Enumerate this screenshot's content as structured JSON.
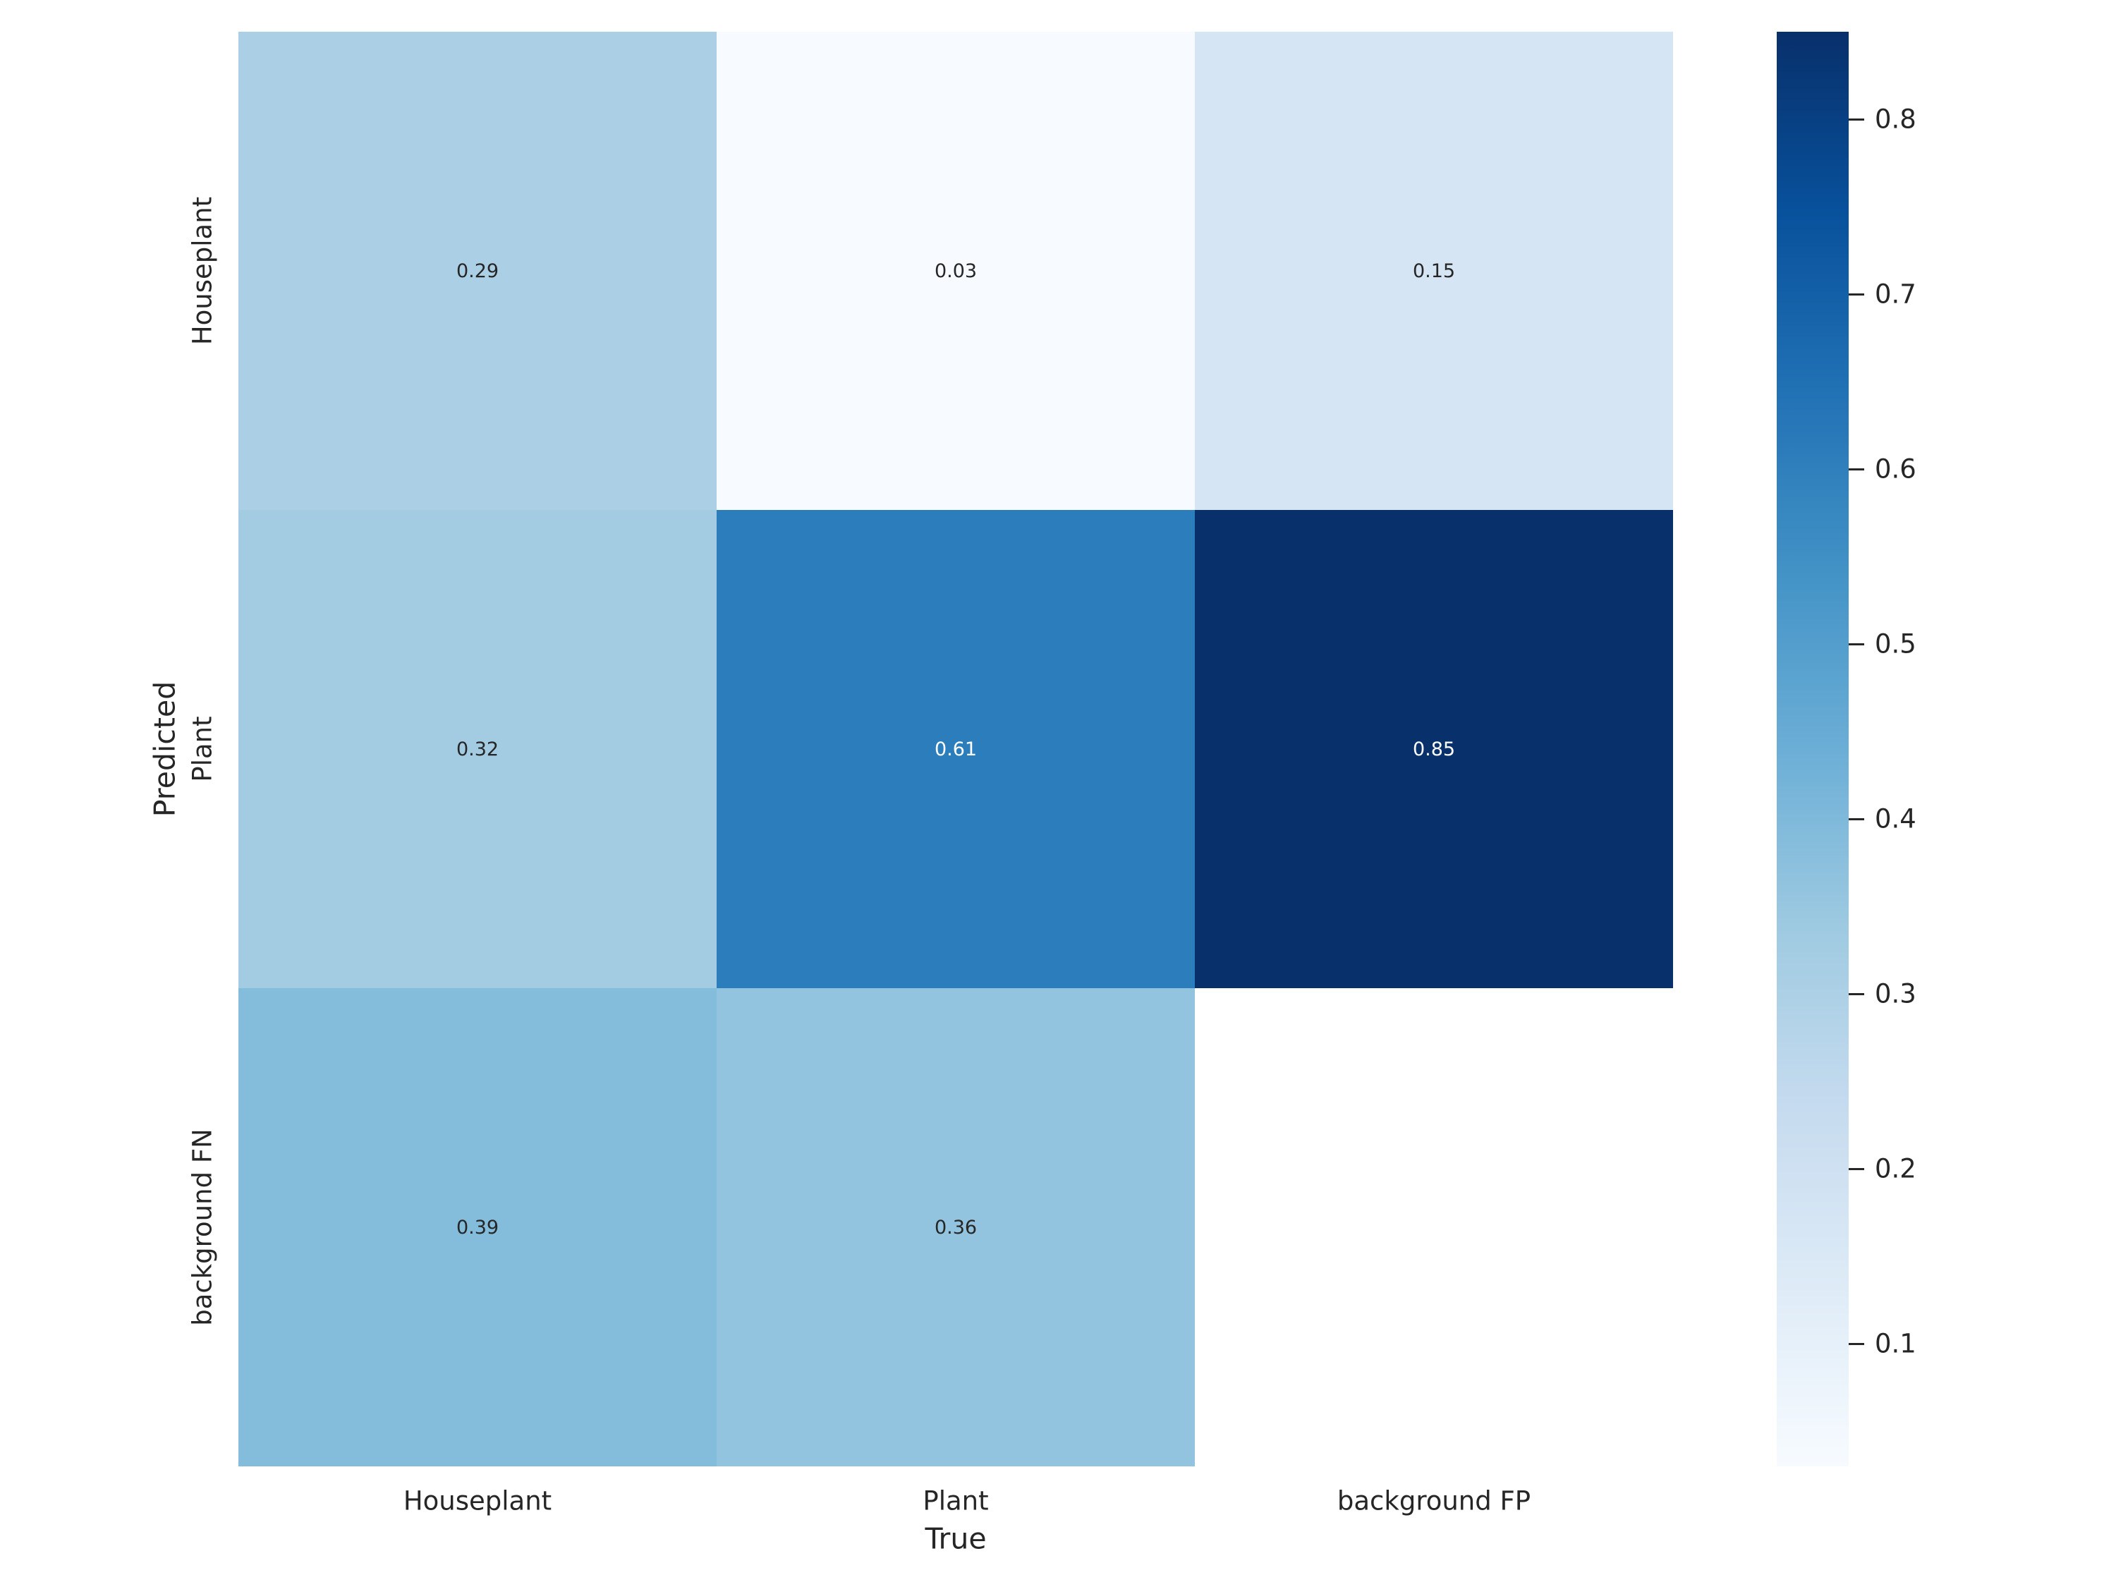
{
  "chart_data": {
    "type": "heatmap",
    "title": "",
    "xlabel": "True",
    "ylabel": "Predicted",
    "x_categories": [
      "Houseplant",
      "Plant",
      "background FP"
    ],
    "y_categories": [
      "Houseplant",
      "Plant",
      "background FN"
    ],
    "values": [
      [
        0.29,
        0.03,
        0.15
      ],
      [
        0.32,
        0.61,
        0.85
      ],
      [
        0.39,
        0.36,
        null
      ]
    ],
    "cell_labels": [
      [
        "0.29",
        "0.03",
        "0.15"
      ],
      [
        "0.32",
        "0.61",
        "0.85"
      ],
      [
        "0.39",
        "0.36",
        ""
      ]
    ],
    "cell_colors": [
      [
        "#abd0e6",
        "#f7fbff",
        "#d5e5f4"
      ],
      [
        "#a3cce3",
        "#2c7dbb",
        "#08306b"
      ],
      [
        "#84bcdb",
        "#93c4df",
        "#ffffff"
      ]
    ],
    "cell_text_colors": [
      [
        "#262626",
        "#262626",
        "#262626"
      ],
      [
        "#262626",
        "#ffffff",
        "#ffffff"
      ],
      [
        "#262626",
        "#262626",
        "#262626"
      ]
    ],
    "colormap": "Blues",
    "vmin": 0.03,
    "vmax": 0.85,
    "colorbar_ticks": [
      0.8,
      0.7,
      0.6,
      0.5,
      0.4,
      0.3,
      0.2,
      0.1
    ],
    "colorbar_stops": [
      {
        "pos": 0.0,
        "color": "#08306b"
      },
      {
        "pos": 0.125,
        "color": "#08519c"
      },
      {
        "pos": 0.25,
        "color": "#2171b5"
      },
      {
        "pos": 0.375,
        "color": "#4292c6"
      },
      {
        "pos": 0.5,
        "color": "#6baed6"
      },
      {
        "pos": 0.625,
        "color": "#9ecae1"
      },
      {
        "pos": 0.75,
        "color": "#c6dbef"
      },
      {
        "pos": 0.875,
        "color": "#deebf7"
      },
      {
        "pos": 1.0,
        "color": "#f7fbff"
      }
    ],
    "legend_position": "right",
    "grid": false
  }
}
